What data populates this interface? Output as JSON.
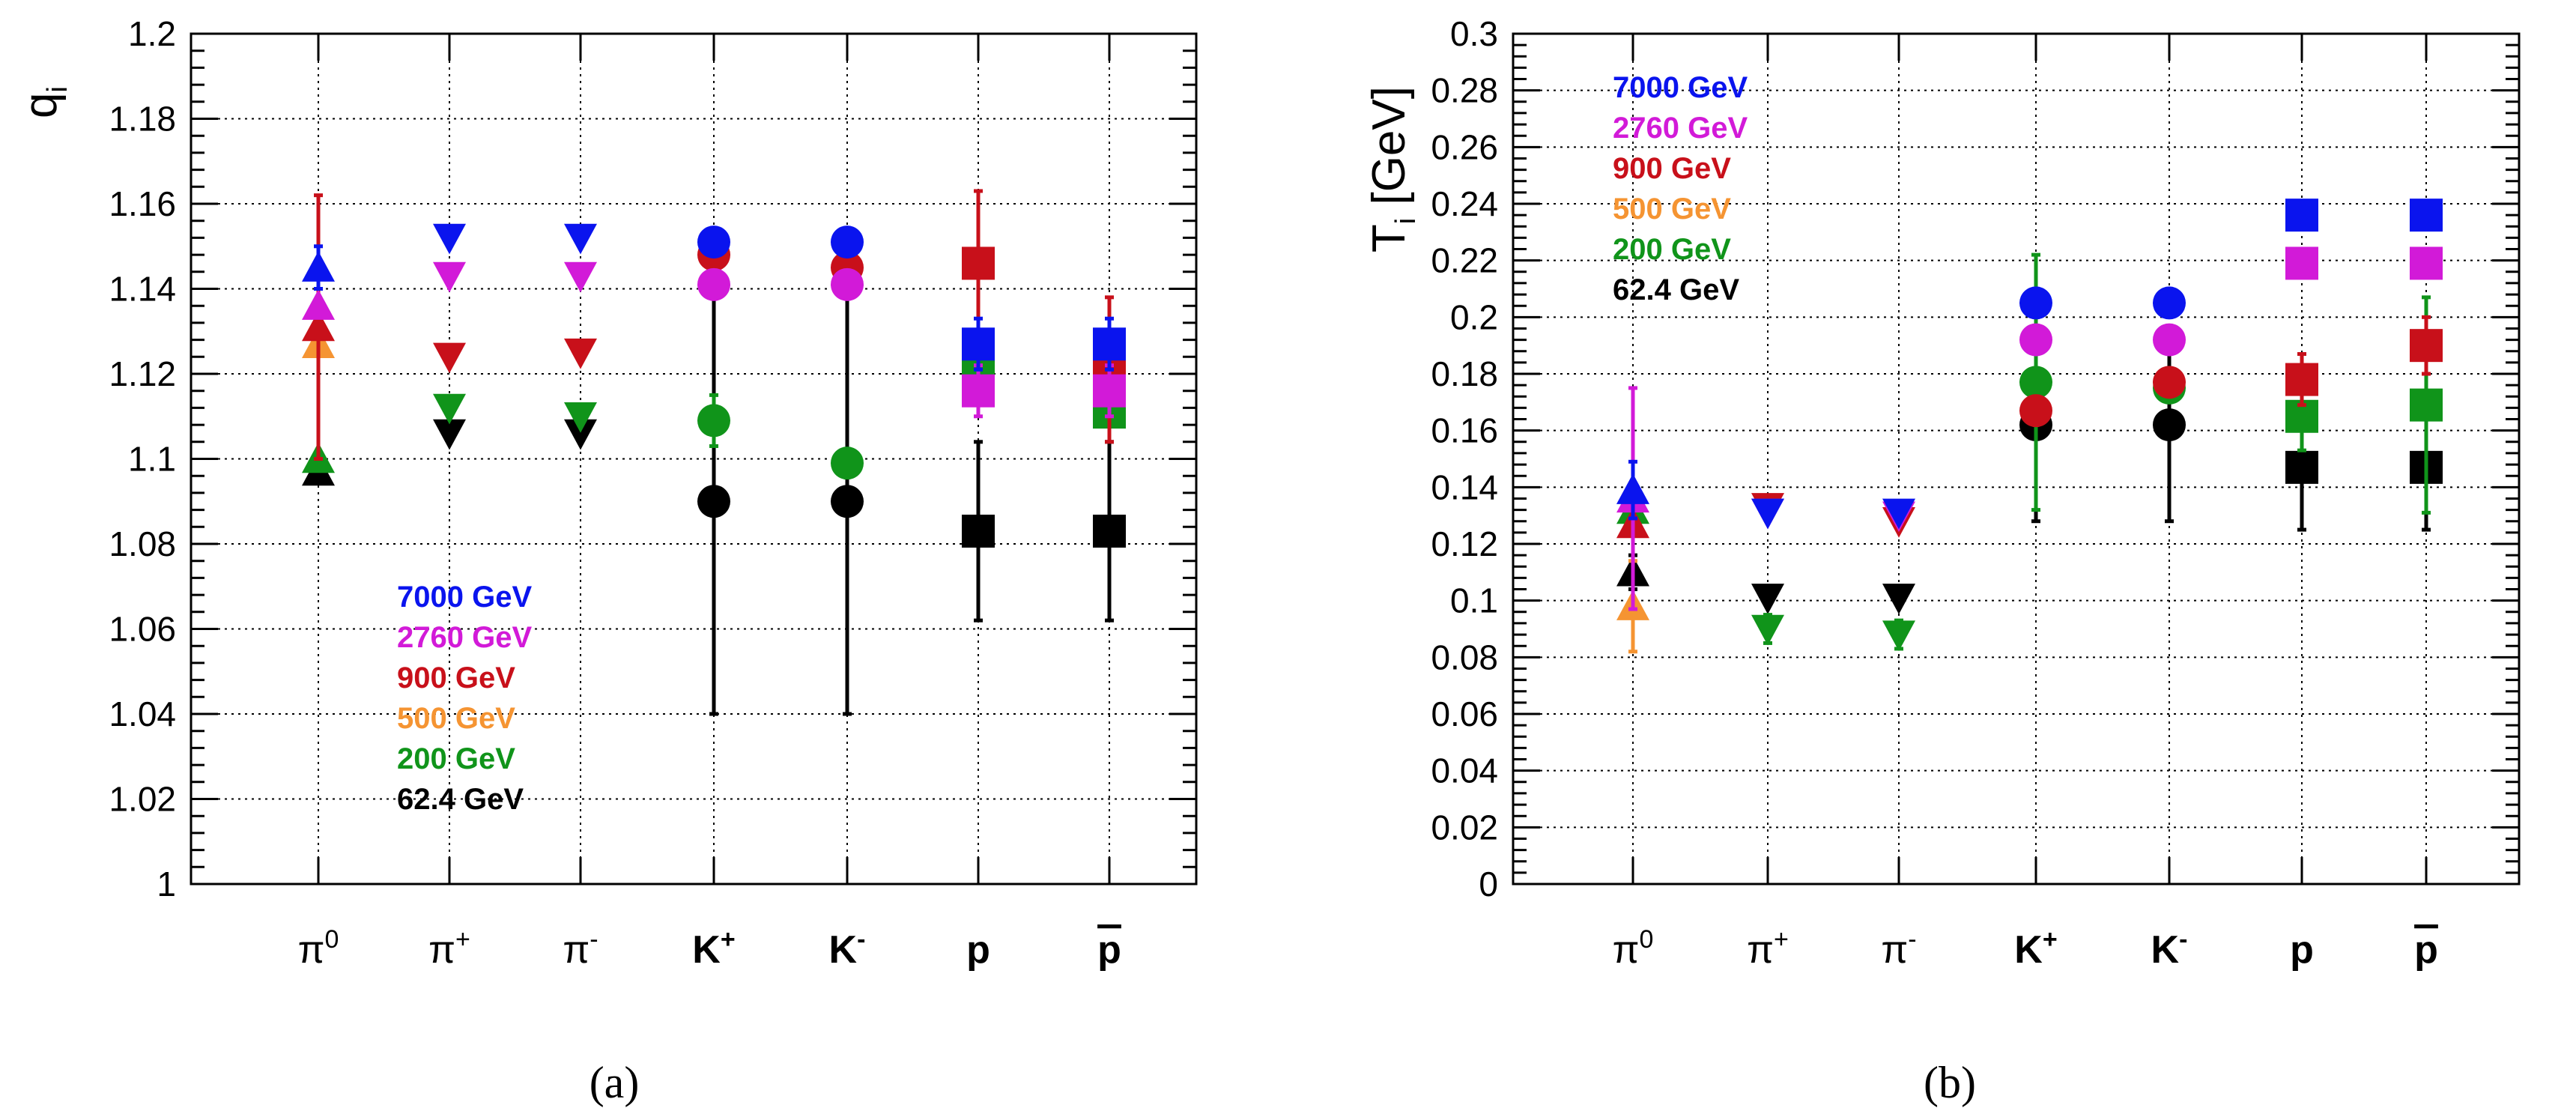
{
  "chart_data": [
    {
      "type": "scatter",
      "panel_label": "(a)",
      "ylabel_main": "q",
      "ylabel_sub": "i",
      "categories": [
        {
          "base": "π",
          "sup": "0",
          "bold": false
        },
        {
          "base": "π",
          "sup": "+",
          "bold": false
        },
        {
          "base": "π",
          "sup": "-",
          "bold": false
        },
        {
          "base": "K",
          "sup": "+",
          "bold": true
        },
        {
          "base": "K",
          "sup": "-",
          "bold": true
        },
        {
          "base": "p",
          "sup": "",
          "bold": true
        },
        {
          "base": "p",
          "sup": "",
          "bold": true,
          "overline": true
        }
      ],
      "ylim": [
        1,
        1.2
      ],
      "yticks": [
        1,
        1.02,
        1.04,
        1.06,
        1.08,
        1.1,
        1.12,
        1.14,
        1.16,
        1.18,
        1.2
      ],
      "ytick_labels": [
        "1",
        "1.02",
        "1.04",
        "1.06",
        "1.08",
        "1.1",
        "1.12",
        "1.14",
        "1.16",
        "1.18",
        "1.2"
      ],
      "grid": true,
      "legend_position": "bottom-left",
      "series": [
        {
          "name": "7000 GeV",
          "color": "#0a14ee",
          "markers": [
            "triangle-up",
            "triangle-down",
            "triangle-down",
            "circle",
            "circle",
            "square",
            "square"
          ],
          "values": [
            1.145,
            1.152,
            1.152,
            1.151,
            1.151,
            1.127,
            1.127
          ],
          "errors": [
            0.005,
            0,
            0,
            0,
            0,
            0.006,
            0.006
          ]
        },
        {
          "name": "2760 GeV",
          "color": "#d21ad8",
          "markers": [
            "triangle-up",
            "triangle-down",
            "triangle-down",
            "circle",
            "circle",
            "square",
            "square"
          ],
          "values": [
            1.136,
            1.143,
            1.143,
            1.141,
            1.141,
            1.116,
            1.116
          ],
          "errors": [
            0,
            0,
            0,
            0,
            0,
            0.006,
            0.006
          ]
        },
        {
          "name": "900 GeV",
          "color": "#c8101a",
          "markers": [
            "triangle-up",
            "triangle-down",
            "triangle-down",
            "circle",
            "circle",
            "square",
            "square"
          ],
          "values": [
            1.131,
            1.124,
            1.125,
            1.148,
            1.145,
            1.146,
            1.121
          ],
          "errors": [
            0.031,
            0,
            0,
            0,
            0,
            0.017,
            0.017
          ]
        },
        {
          "name": "500 GeV",
          "color": "#f59432",
          "markers": [
            "triangle-up",
            "triangle-down",
            "triangle-down",
            "circle",
            "circle",
            "square",
            "square"
          ],
          "values": [
            1.127,
            null,
            null,
            null,
            null,
            null,
            null
          ],
          "errors": [
            0,
            0,
            0,
            0,
            0,
            0,
            0
          ]
        },
        {
          "name": "200 GeV",
          "color": "#10941a",
          "markers": [
            "triangle-up",
            "triangle-down",
            "triangle-down",
            "circle",
            "circle",
            "square",
            "square"
          ],
          "values": [
            1.1,
            1.112,
            1.11,
            1.109,
            1.099,
            1.122,
            1.111
          ],
          "errors": [
            0,
            0,
            0,
            0.006,
            0,
            0,
            0
          ]
        },
        {
          "name": "62.4 GeV",
          "color": "#000000",
          "markers": [
            "triangle-up",
            "triangle-down",
            "triangle-down",
            "circle",
            "circle",
            "square",
            "square"
          ],
          "values": [
            1.097,
            1.106,
            1.106,
            1.09,
            1.09,
            1.083,
            1.083
          ],
          "errors": [
            0,
            0,
            0,
            0.05,
            0.05,
            0.021,
            0.021
          ]
        }
      ]
    },
    {
      "type": "scatter",
      "panel_label": "(b)",
      "ylabel_main": "T",
      "ylabel_sub": "i",
      "ylabel_suffix": " [GeV]",
      "categories": [
        {
          "base": "π",
          "sup": "0",
          "bold": false
        },
        {
          "base": "π",
          "sup": "+",
          "bold": false
        },
        {
          "base": "π",
          "sup": "-",
          "bold": false
        },
        {
          "base": "K",
          "sup": "+",
          "bold": true
        },
        {
          "base": "K",
          "sup": "-",
          "bold": true
        },
        {
          "base": "p",
          "sup": "",
          "bold": true
        },
        {
          "base": "p",
          "sup": "",
          "bold": true,
          "overline": true
        }
      ],
      "ylim": [
        0,
        0.3
      ],
      "yticks": [
        0,
        0.02,
        0.04,
        0.06,
        0.08,
        0.1,
        0.12,
        0.14,
        0.16,
        0.18,
        0.2,
        0.22,
        0.24,
        0.26,
        0.28,
        0.3
      ],
      "ytick_labels": [
        "0",
        "0.02",
        "0.04",
        "0.06",
        "0.08",
        "0.1",
        "0.12",
        "0.14",
        "0.16",
        "0.18",
        "0.2",
        "0.22",
        "0.24",
        "0.26",
        "0.28",
        "0.3"
      ],
      "grid": true,
      "legend_position": "top-left",
      "series": [
        {
          "name": "7000 GeV",
          "color": "#0a14ee",
          "markers": [
            "triangle-up",
            "triangle-down",
            "triangle-down",
            "circle",
            "circle",
            "square",
            "square"
          ],
          "values": [
            0.139,
            0.131,
            0.131,
            0.205,
            0.205,
            0.236,
            0.236
          ],
          "errors": [
            0.01,
            0,
            0,
            0,
            0,
            0.005,
            0.005
          ]
        },
        {
          "name": "2760 GeV",
          "color": "#d21ad8",
          "markers": [
            "triangle-up",
            "triangle-down",
            "triangle-down",
            "circle",
            "circle",
            "square",
            "square"
          ],
          "values": [
            0.136,
            0.131,
            0.13,
            0.192,
            0.192,
            0.219,
            0.219
          ],
          "errors": [
            0.039,
            0,
            0,
            0,
            0,
            0.005,
            0.005
          ]
        },
        {
          "name": "900 GeV",
          "color": "#c8101a",
          "markers": [
            "triangle-up",
            "triangle-down",
            "triangle-down",
            "circle",
            "circle",
            "square",
            "square"
          ],
          "values": [
            0.127,
            0.133,
            0.128,
            0.167,
            0.177,
            0.178,
            0.19
          ],
          "errors": [
            0,
            0,
            0,
            0,
            0,
            0.009,
            0.01
          ]
        },
        {
          "name": "500 GeV",
          "color": "#f59432",
          "markers": [
            "triangle-up",
            "triangle-down",
            "triangle-down",
            "circle",
            "circle",
            "square",
            "square"
          ],
          "values": [
            0.098,
            null,
            null,
            null,
            null,
            null,
            null
          ],
          "errors": [
            0.016,
            0,
            0,
            0,
            0,
            0,
            0
          ]
        },
        {
          "name": "200 GeV",
          "color": "#10941a",
          "markers": [
            "triangle-up",
            "triangle-down",
            "triangle-down",
            "circle",
            "circle",
            "square",
            "square"
          ],
          "values": [
            0.132,
            0.09,
            0.088,
            0.177,
            0.175,
            0.165,
            0.169
          ],
          "errors": [
            0,
            0.005,
            0.005,
            0.045,
            0,
            0.012,
            0.038
          ]
        },
        {
          "name": "62.4 GeV",
          "color": "#000000",
          "markers": [
            "triangle-up",
            "triangle-down",
            "triangle-down",
            "circle",
            "circle",
            "square",
            "square"
          ],
          "values": [
            0.11,
            0.101,
            0.101,
            0.162,
            0.162,
            0.147,
            0.147
          ],
          "errors": [
            0.006,
            0,
            0,
            0.034,
            0.034,
            0.022,
            0.022
          ]
        }
      ]
    }
  ]
}
